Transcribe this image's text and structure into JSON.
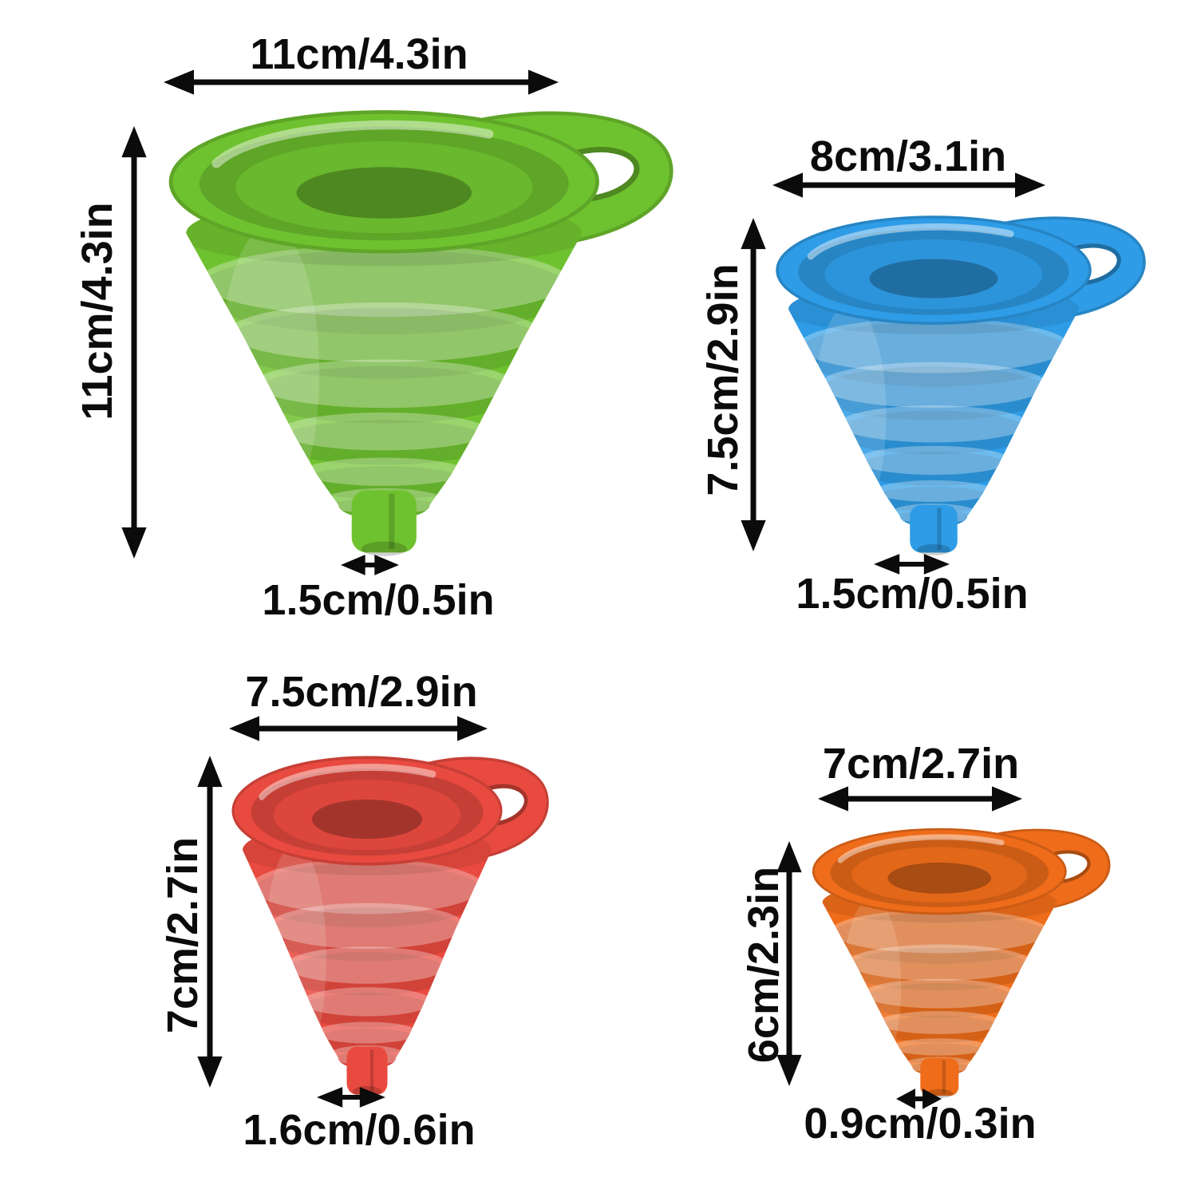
{
  "page": {
    "background": "#ffffff",
    "description": "Dimension diagram of four collapsible silicone funnels"
  },
  "annotation": {
    "arrow_color": "#0b0b0b",
    "text_color": "#0b0b0b"
  },
  "funnels": [
    {
      "id": "green",
      "color": "#6fc22f",
      "width_label": "11cm/4.3in",
      "height_label": "11cm/4.3in",
      "spout_label": "1.5cm/0.5in"
    },
    {
      "id": "blue",
      "color": "#2e9ce6",
      "width_label": "8cm/3.1in",
      "height_label": "7.5cm/2.9in",
      "spout_label": "1.5cm/0.5in"
    },
    {
      "id": "red",
      "color": "#e94a3f",
      "width_label": "7.5cm/2.9in",
      "height_label": "7cm/2.7in",
      "spout_label": "1.6cm/0.6in"
    },
    {
      "id": "orange",
      "color": "#ee6c1a",
      "width_label": "7cm/2.7in",
      "height_label": "6cm/2.3in",
      "spout_label": "0.9cm/0.3in"
    }
  ]
}
